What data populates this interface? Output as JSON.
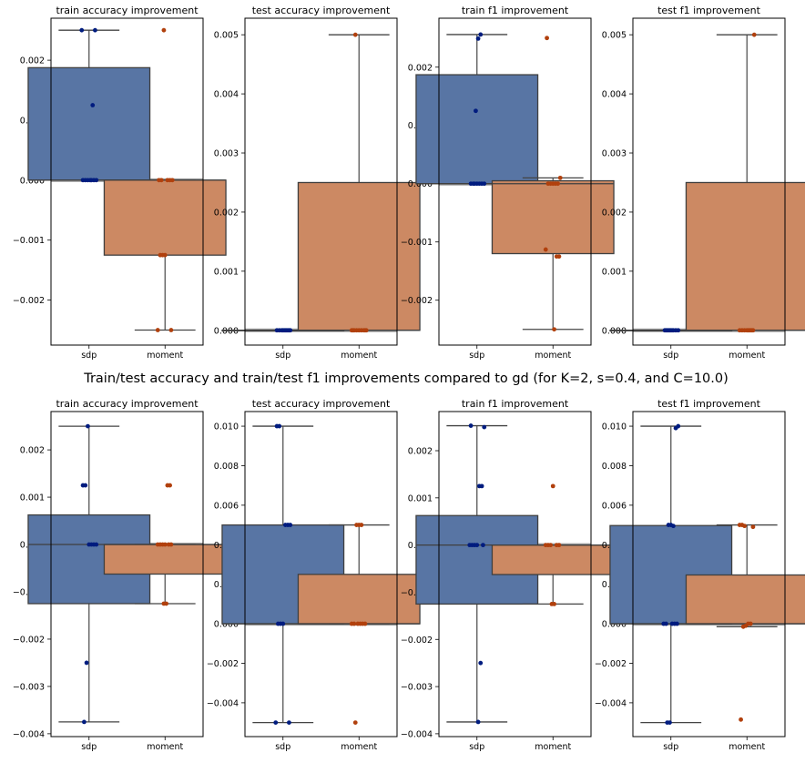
{
  "suptitle": "Train/test accuracy and train/test f1 improvements compared to gd (for K=2, s=0.4, and C=10.0)",
  "colors": {
    "sdp_box": "#5875a4",
    "moment_box": "#cc8963",
    "sdp_point": "#001c7f",
    "moment_point": "#b1400d",
    "zero_line": "#a0a0a0",
    "box_edge": "#3f3f3f"
  },
  "chart_data": [
    {
      "type": "box",
      "title": "train accuracy improvement",
      "categories": [
        "sdp",
        "moment"
      ],
      "ylim": [
        -0.00275,
        0.0027
      ],
      "yticks": [
        -0.002,
        -0.001,
        0,
        0.001,
        0.002
      ],
      "ytick_labels": [
        "−0.002",
        "−0.001",
        "0.000",
        "0.001",
        "0.002"
      ],
      "boxes": [
        {
          "q1": 0,
          "median": 0,
          "q3": 0.001875,
          "whislo": 0,
          "whishi": 0.0025,
          "points": [
            0.0025,
            0.0025,
            0.00125,
            0,
            0,
            0,
            0,
            0,
            0,
            0
          ]
        },
        {
          "q1": -0.00125,
          "median": 0,
          "q3": 0,
          "whislo": -0.0025,
          "whishi": 0,
          "points": [
            0.0025,
            0,
            0,
            0,
            0,
            0,
            -0.00125,
            -0.00125,
            -0.00125,
            -0.0025,
            -0.0025
          ]
        }
      ]
    },
    {
      "type": "box",
      "title": "test accuracy improvement",
      "categories": [
        "sdp",
        "moment"
      ],
      "ylim": [
        -0.00025,
        0.00528
      ],
      "yticks": [
        0,
        0.001,
        0.002,
        0.003,
        0.004,
        0.005
      ],
      "ytick_labels": [
        "0.000",
        "0.001",
        "0.002",
        "0.003",
        "0.004",
        "0.005"
      ],
      "boxes": [
        {
          "q1": 0,
          "median": 0,
          "q3": 0,
          "whislo": 0,
          "whishi": 0,
          "points": [
            0,
            0,
            0,
            0,
            0,
            0,
            0,
            0,
            0,
            0
          ]
        },
        {
          "q1": 0,
          "median": 0,
          "q3": 0.0025,
          "whislo": 0,
          "whishi": 0.005,
          "points": [
            0.005,
            0,
            0,
            0,
            0,
            0,
            0,
            0,
            0,
            0
          ]
        }
      ]
    },
    {
      "type": "box",
      "title": "train f1 improvement",
      "categories": [
        "sdp",
        "moment"
      ],
      "ylim": [
        -0.00277,
        0.00284
      ],
      "yticks": [
        -0.002,
        -0.001,
        0,
        0.001,
        0.002
      ],
      "ytick_labels": [
        "−0.002",
        "−0.001",
        "0.000",
        "0.001",
        "0.002"
      ],
      "boxes": [
        {
          "q1": 0,
          "median": 0,
          "q3": 0.00187,
          "whislo": 0,
          "whishi": 0.00256,
          "points": [
            0.00256,
            0.00249,
            0.00125,
            0,
            0,
            0,
            0,
            0,
            0,
            0
          ]
        },
        {
          "q1": -0.0012,
          "median": 0,
          "q3": 5e-05,
          "whislo": -0.0025,
          "whishi": 0.0001,
          "points": [
            0.0025,
            0.0001,
            0,
            0,
            0,
            0,
            0,
            -0.00113,
            -0.00125,
            -0.00125,
            -0.0025
          ]
        }
      ]
    },
    {
      "type": "box",
      "title": "test f1 improvement",
      "categories": [
        "sdp",
        "moment"
      ],
      "ylim": [
        -0.00025,
        0.00528
      ],
      "yticks": [
        0,
        0.001,
        0.002,
        0.003,
        0.004,
        0.005
      ],
      "ytick_labels": [
        "0.000",
        "0.001",
        "0.002",
        "0.003",
        "0.004",
        "0.005"
      ],
      "boxes": [
        {
          "q1": 0,
          "median": 0,
          "q3": 0,
          "whislo": 0,
          "whishi": 0,
          "points": [
            0,
            0,
            0,
            0,
            0,
            0,
            0,
            0,
            0,
            0
          ]
        },
        {
          "q1": 0,
          "median": 0,
          "q3": 0.0025,
          "whislo": 0,
          "whishi": 0.005,
          "points": [
            0.005,
            0,
            0,
            0,
            0,
            0,
            0,
            0,
            0,
            0
          ]
        }
      ]
    },
    {
      "type": "box",
      "title": "train accuracy improvement",
      "categories": [
        "sdp",
        "moment"
      ],
      "ylim": [
        -0.00406,
        0.00281
      ],
      "yticks": [
        -0.004,
        -0.003,
        -0.002,
        -0.001,
        0,
        0.001,
        0.002
      ],
      "ytick_labels": [
        "−0.004",
        "−0.003",
        "−0.002",
        "−0.001",
        "0.000",
        "0.001",
        "0.002"
      ],
      "boxes": [
        {
          "q1": -0.00125,
          "median": 0,
          "q3": 0.000625,
          "whislo": -0.00375,
          "whishi": 0.0025,
          "points": [
            0.0025,
            0.00125,
            0.00125,
            0,
            0,
            0,
            0,
            -0.0025,
            -0.00375
          ]
        },
        {
          "q1": -0.000625,
          "median": 0,
          "q3": 0,
          "whislo": -0.00125,
          "whishi": 0,
          "points": [
            0.00125,
            0.00125,
            0,
            0,
            0,
            0,
            0,
            0,
            -0.00125,
            -0.00125
          ]
        }
      ]
    },
    {
      "type": "box",
      "title": "test accuracy improvement",
      "categories": [
        "sdp",
        "moment"
      ],
      "ylim": [
        -0.00571,
        0.01074
      ],
      "yticks": [
        -0.004,
        -0.002,
        0,
        0.002,
        0.004,
        0.006,
        0.008,
        0.01
      ],
      "ytick_labels": [
        "−0.004",
        "−0.002",
        "0.000",
        "0.002",
        "0.004",
        "0.006",
        "0.008",
        "0.010"
      ],
      "boxes": [
        {
          "q1": 0,
          "median": 0,
          "q3": 0.005,
          "whislo": -0.005,
          "whishi": 0.01,
          "points": [
            0.01,
            0.01,
            0.005,
            0.005,
            0.005,
            0,
            0,
            0,
            -0.005,
            -0.005
          ]
        },
        {
          "q1": 0,
          "median": 0,
          "q3": 0.0025,
          "whislo": 0,
          "whishi": 0.005,
          "points": [
            0.005,
            0.005,
            0.005,
            0,
            0,
            0,
            0,
            0,
            0,
            -0.005
          ]
        }
      ]
    },
    {
      "type": "box",
      "title": "train f1 improvement",
      "categories": [
        "sdp",
        "moment"
      ],
      "ylim": [
        -0.00406,
        0.00283
      ],
      "yticks": [
        -0.004,
        -0.003,
        -0.002,
        -0.001,
        0,
        0.001,
        0.002
      ],
      "ytick_labels": [
        "−0.004",
        "−0.003",
        "−0.002",
        "−0.001",
        "0.000",
        "0.001",
        "0.002"
      ],
      "boxes": [
        {
          "q1": -0.00125,
          "median": 0,
          "q3": 0.000625,
          "whislo": -0.00375,
          "whishi": 0.00253,
          "points": [
            0.00253,
            0.0025,
            0.00125,
            0.00125,
            0,
            0,
            0,
            0,
            0,
            -0.0025,
            -0.00375
          ]
        },
        {
          "q1": -0.000625,
          "median": 0,
          "q3": 0,
          "whislo": -0.00125,
          "whishi": 0,
          "points": [
            0.00125,
            0,
            0,
            0,
            0,
            0,
            -0.00125,
            -0.00125
          ]
        }
      ]
    },
    {
      "type": "box",
      "title": "test f1 improvement",
      "categories": [
        "sdp",
        "moment"
      ],
      "ylim": [
        -0.00571,
        0.01074
      ],
      "yticks": [
        -0.004,
        -0.002,
        0,
        0.002,
        0.004,
        0.006,
        0.008,
        0.01
      ],
      "ytick_labels": [
        "−0.004",
        "−0.002",
        "0.000",
        "0.002",
        "0.004",
        "0.006",
        "0.008",
        "0.010"
      ],
      "boxes": [
        {
          "q1": 0,
          "median": 0,
          "q3": 0.00497,
          "whislo": -0.005,
          "whishi": 0.01,
          "points": [
            0.01,
            0.0099,
            0.00495,
            0.005,
            0.005,
            0,
            0,
            0,
            0,
            0,
            -0.005,
            -0.005
          ]
        },
        {
          "q1": 0,
          "median": 0,
          "q3": 0.00247,
          "whislo": -0.00015,
          "whishi": 0.005,
          "points": [
            0.00495,
            0.005,
            0.005,
            0.0049,
            0,
            0,
            -0.0001,
            -0.00015,
            -0.00485
          ]
        }
      ]
    }
  ]
}
